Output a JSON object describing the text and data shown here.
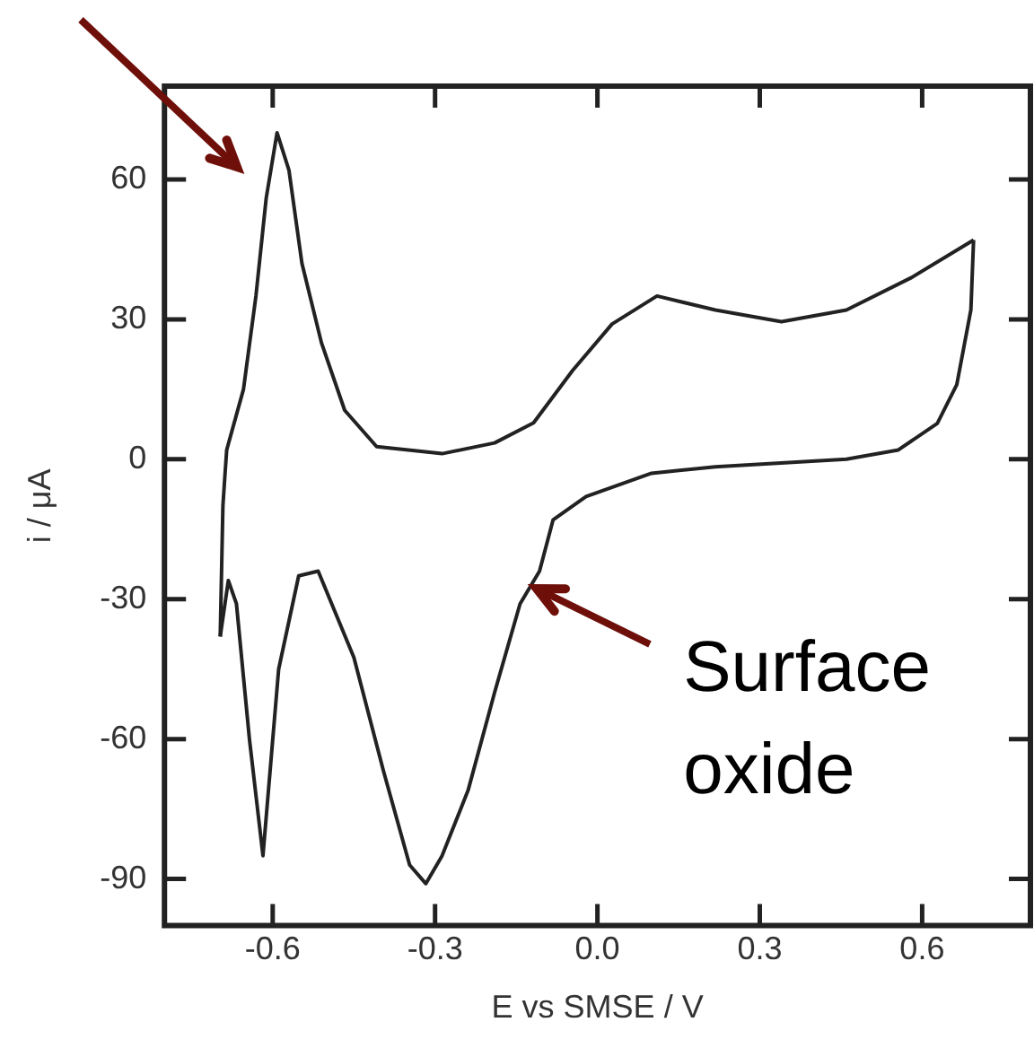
{
  "chart_data": {
    "type": "line",
    "xlabel": "E vs SMSE / V",
    "ylabel": "i / μA",
    "series": [
      {
        "color": "#222222",
        "x": [
          -0.697,
          -0.692,
          -0.688,
          -0.685,
          -0.654,
          -0.631,
          -0.612,
          -0.592,
          -0.57,
          -0.546,
          -0.51,
          -0.467,
          -0.408,
          -0.287,
          -0.19,
          -0.118,
          -0.046,
          0.027,
          0.11,
          0.218,
          0.34,
          0.46,
          0.581,
          0.695
        ],
        "values": [
          -38,
          -10,
          -3,
          2,
          15,
          35,
          56,
          70,
          62,
          42,
          25,
          10.5,
          2.7,
          1.2,
          3.5,
          7.8,
          19,
          29,
          35,
          32,
          29.5,
          32,
          39,
          47
        ]
      },
      {
        "color": "#222222",
        "x": [
          0.695,
          0.69,
          0.664,
          0.628,
          0.556,
          0.46,
          0.218,
          0.1,
          -0.021,
          -0.082,
          -0.107,
          -0.143,
          -0.19,
          -0.239,
          -0.287,
          -0.317,
          -0.347,
          -0.395,
          -0.45,
          -0.516,
          -0.552,
          -0.589,
          -0.618,
          -0.643,
          -0.667,
          -0.682,
          -0.697
        ],
        "values": [
          47,
          32,
          16,
          7.7,
          2,
          0,
          -1.6,
          -3,
          -8,
          -13,
          -24,
          -31,
          -50,
          -71,
          -85,
          -91,
          -87,
          -67,
          -42.5,
          -24,
          -25,
          -45,
          -85,
          -60,
          -31,
          -26,
          -38
        ]
      }
    ],
    "xlim": [
      -0.8,
      0.8
    ],
    "xticks": [
      {
        "value": -0.6,
        "label": "-0.6"
      },
      {
        "value": -0.3,
        "label": "-0.3"
      },
      {
        "value": 0,
        "label": "0.0"
      },
      {
        "value": 0.3,
        "label": "0.3"
      },
      {
        "value": 0.6,
        "label": "0.6"
      }
    ],
    "ylim": [
      -100,
      80
    ],
    "yticks": [
      -90,
      -60,
      -30,
      0,
      30,
      60
    ],
    "grid": false,
    "legend": false,
    "annotations": [
      "Surface oxide"
    ]
  }
}
